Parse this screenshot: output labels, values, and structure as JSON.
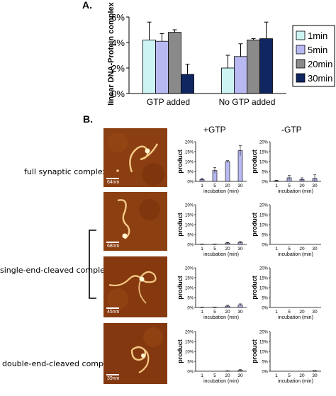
{
  "panel_a": {
    "letter": "A.",
    "chart_data": {
      "type": "bar",
      "categories": [
        "GTP added",
        "No GTP added"
      ],
      "ylabel": "linear DNA-Protein complex",
      "ylim": [
        0,
        6
      ],
      "ytick_labels": [
        "0%",
        "2%",
        "4%",
        "6%"
      ],
      "series": [
        {
          "name": "1min",
          "color": "#cdf3f3",
          "values": [
            4.2,
            2.0
          ],
          "errors": [
            1.4,
            1.0
          ]
        },
        {
          "name": "5min",
          "color": "#b9b9f2",
          "values": [
            4.1,
            2.9
          ],
          "errors": [
            0.6,
            1.0
          ]
        },
        {
          "name": "20min",
          "color": "#8a8a8a",
          "values": [
            4.8,
            4.2
          ],
          "errors": [
            0.2,
            0.1
          ]
        },
        {
          "name": "30min",
          "color": "#102660",
          "values": [
            1.5,
            4.3
          ],
          "errors": [
            0.8,
            1.3
          ]
        }
      ],
      "legend_position": "right"
    }
  },
  "panel_b": {
    "letter": "B.",
    "col_titles": [
      "+GTP",
      "-GTP"
    ],
    "bracket_color": "#000000",
    "rows": [
      {
        "label": "full synaptic complex",
        "scale": "64nm"
      },
      {
        "label": "",
        "scale": "68nm"
      },
      {
        "label": "single-end-cleaved complex",
        "scale": "45nm"
      },
      {
        "label": "double-end-cleaved complex",
        "scale": "39nm"
      }
    ],
    "small_chart_common": {
      "ylabel": "product",
      "xlabel": "incubation (min)",
      "ytick_labels": [
        "0%",
        "5%",
        "10%",
        "15%",
        "20%"
      ],
      "categories": [
        "1",
        "5",
        "20",
        "30"
      ],
      "ylim": [
        0,
        20
      ],
      "bar_color": "#b9b9f2"
    },
    "chart_data": [
      {
        "type": "bar",
        "title": "+GTP",
        "row": 0,
        "col": 0,
        "values": [
          1.0,
          5.5,
          10.0,
          15.5
        ],
        "errors": [
          0.6,
          1.5,
          0.5,
          2.5
        ]
      },
      {
        "type": "bar",
        "title": "-GTP",
        "row": 0,
        "col": 1,
        "values": [
          0.3,
          1.8,
          1.0,
          1.5
        ],
        "errors": [
          0.3,
          1.2,
          0.8,
          1.8
        ]
      },
      {
        "type": "bar",
        "row": 1,
        "col": 0,
        "values": [
          0.1,
          0.1,
          0.7,
          1.0
        ],
        "errors": [
          0.1,
          0.1,
          0.3,
          0.5
        ]
      },
      {
        "type": "bar",
        "row": 1,
        "col": 1,
        "values": [
          0,
          0,
          0,
          0
        ],
        "errors": [
          0,
          0,
          0,
          0
        ]
      },
      {
        "type": "bar",
        "row": 2,
        "col": 0,
        "values": [
          0.1,
          0.1,
          0.7,
          1.3
        ],
        "errors": [
          0.1,
          0.1,
          0.4,
          0.5
        ]
      },
      {
        "type": "bar",
        "row": 2,
        "col": 1,
        "values": [
          0,
          0,
          0,
          0
        ],
        "errors": [
          0,
          0,
          0,
          0
        ]
      },
      {
        "type": "bar",
        "row": 3,
        "col": 0,
        "values": [
          0,
          0,
          0.1,
          0.5
        ],
        "errors": [
          0,
          0,
          0.1,
          0.3
        ]
      },
      {
        "type": "bar",
        "row": 3,
        "col": 1,
        "values": [
          0,
          0,
          0,
          0.2
        ],
        "errors": [
          0,
          0,
          0,
          0.1
        ]
      }
    ]
  }
}
